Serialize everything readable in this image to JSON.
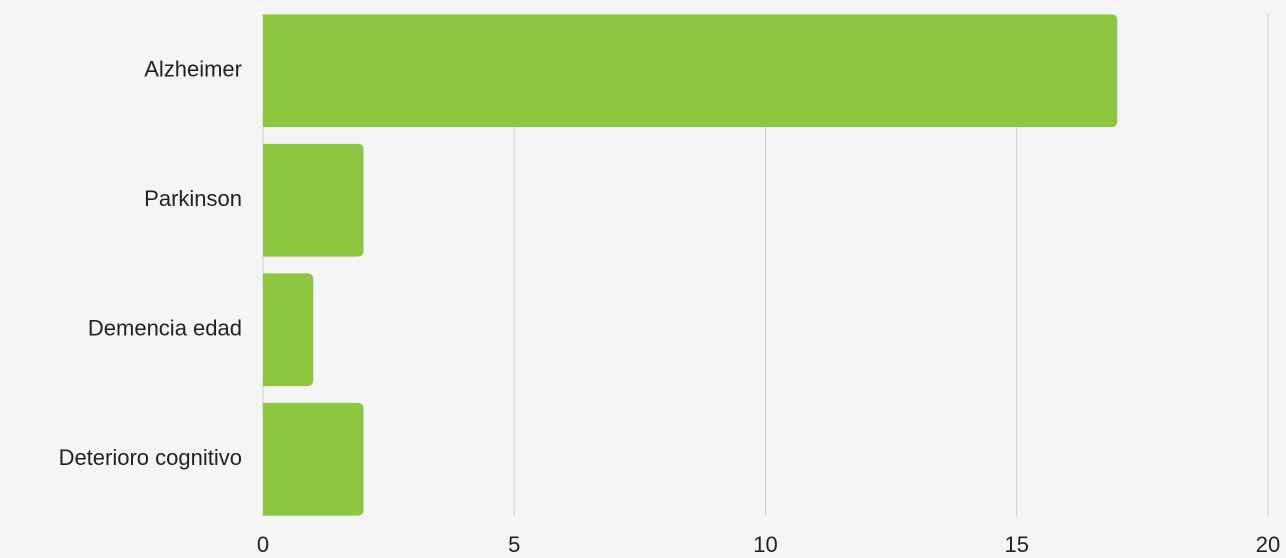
{
  "chart_data": {
    "type": "hbar",
    "categories": [
      "Alzheimer",
      "Parkinson",
      "Demencia edad",
      "Deterioro cognitivo"
    ],
    "values": [
      17,
      2,
      1,
      2
    ],
    "color": "#8dc63f",
    "xlim": [
      0,
      20
    ],
    "xticks": [
      0,
      5,
      10,
      15,
      20
    ],
    "grid": true
  }
}
